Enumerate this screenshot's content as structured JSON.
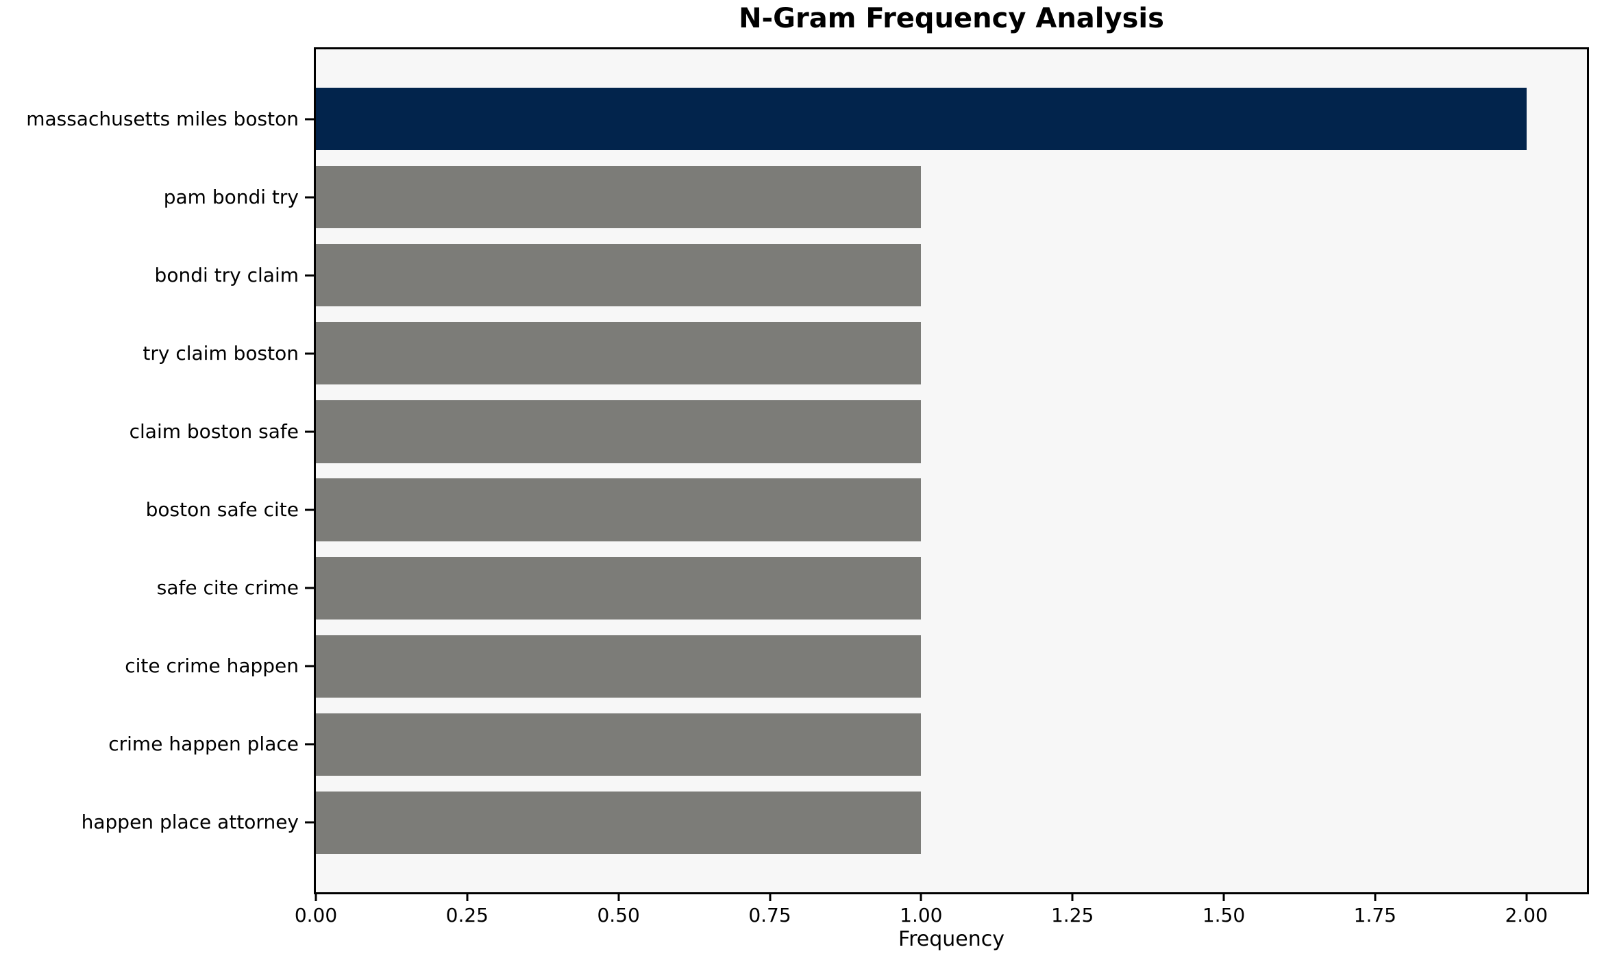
{
  "chart_data": {
    "type": "bar",
    "orientation": "horizontal",
    "title": "N-Gram Frequency Analysis",
    "xlabel": "Frequency",
    "ylabel": "",
    "categories": [
      "massachusetts miles boston",
      "pam bondi try",
      "bondi try claim",
      "try claim boston",
      "claim boston safe",
      "boston safe cite",
      "safe cite crime",
      "cite crime happen",
      "crime happen place",
      "happen place attorney"
    ],
    "values": [
      2,
      1,
      1,
      1,
      1,
      1,
      1,
      1,
      1,
      1
    ],
    "bar_colors": [
      "#02244c",
      "#7c7c78",
      "#7c7c78",
      "#7c7c78",
      "#7c7c78",
      "#7c7c78",
      "#7c7c78",
      "#7c7c78",
      "#7c7c78",
      "#7c7c78"
    ],
    "xlim": [
      0,
      2.1
    ],
    "xtick_values": [
      0,
      0.25,
      0.5,
      0.75,
      1.0,
      1.25,
      1.5,
      1.75,
      2.0
    ],
    "xtick_labels": [
      "0.00",
      "0.25",
      "0.50",
      "0.75",
      "1.00",
      "1.25",
      "1.50",
      "1.75",
      "2.00"
    ],
    "grid": false,
    "legend_position": "none"
  },
  "style": {
    "highlight_color": "#02244c",
    "default_bar_color": "#7c7c78",
    "plot_background": "#f7f7f7",
    "figure_background": "#ffffff",
    "spine_color": "#000000",
    "text_color": "#000000"
  }
}
